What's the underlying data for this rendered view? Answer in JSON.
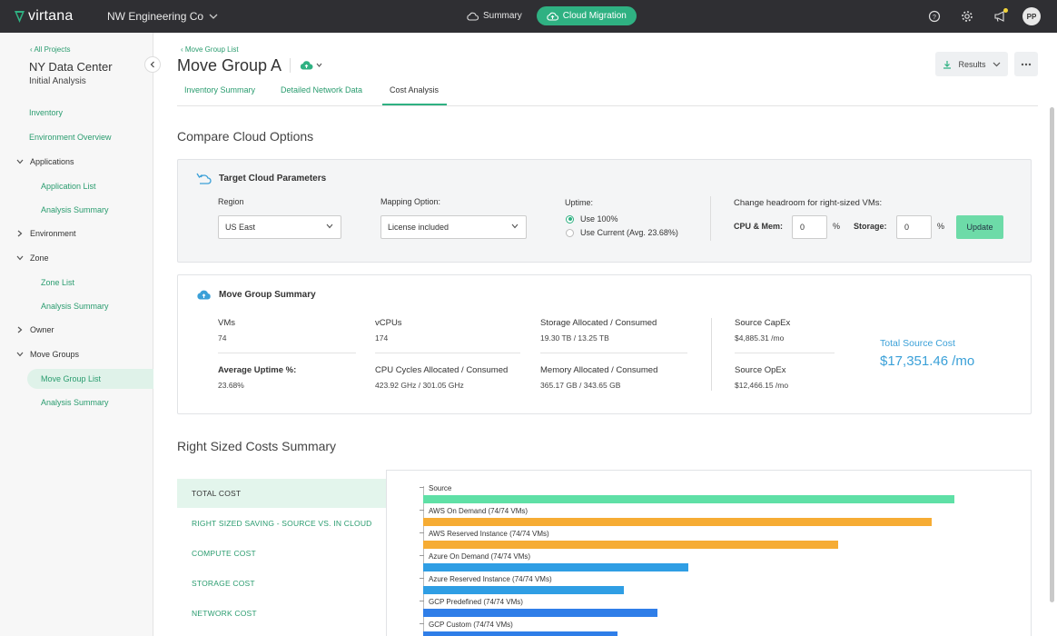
{
  "header": {
    "logo": "virtana",
    "org": "NW Engineering Co",
    "nav": [
      {
        "label": "Summary"
      },
      {
        "label": "Cloud Migration"
      }
    ],
    "avatar": "PP"
  },
  "sidebar": {
    "back": "All Projects",
    "title": "NY Data Center",
    "subtitle": "Initial Analysis",
    "items": [
      {
        "label": "Inventory"
      },
      {
        "label": "Environment Overview"
      },
      {
        "label": "Applications"
      },
      {
        "label": "Application List"
      },
      {
        "label": "Analysis Summary"
      },
      {
        "label": "Environment"
      },
      {
        "label": "Zone"
      },
      {
        "label": "Zone List"
      },
      {
        "label": "Analysis Summary"
      },
      {
        "label": "Owner"
      },
      {
        "label": "Move Groups"
      },
      {
        "label": "Move Group List"
      },
      {
        "label": "Analysis Summary"
      }
    ]
  },
  "page": {
    "breadcrumb": "Move Group List",
    "title": "Move Group A",
    "results_label": "Results",
    "tabs": [
      {
        "label": "Inventory Summary"
      },
      {
        "label": "Detailed Network Data"
      },
      {
        "label": "Cost Analysis"
      }
    ]
  },
  "compare": {
    "title": "Compare Cloud Options",
    "panel_title": "Target Cloud Parameters",
    "region_label": "Region",
    "region_value": "US East",
    "mapping_label": "Mapping Option:",
    "mapping_value": "License included",
    "uptime_label": "Uptime:",
    "uptime_options": [
      "Use 100%",
      "Use Current (Avg. 23.68%)"
    ],
    "headroom_label": "Change headroom for right-sized VMs:",
    "cpu_mem_label": "CPU & Mem:",
    "cpu_mem_value": "0",
    "storage_label": "Storage:",
    "storage_value": "0",
    "percent": "%",
    "update_label": "Update"
  },
  "summary": {
    "title": "Move Group Summary",
    "vms_label": "VMs",
    "vms_value": "74",
    "vcpus_label": "vCPUs",
    "vcpus_value": "174",
    "storage_label": "Storage Allocated / Consumed",
    "storage_value": "19.30 TB  /  13.25 TB",
    "uptime_label": "Average Uptime %:",
    "uptime_value": "23.68%",
    "cpu_label": "CPU Cycles Allocated / Consumed",
    "cpu_value": "423.92 GHz  /  301.05 GHz",
    "memory_label": "Memory Allocated / Consumed",
    "memory_value": "365.17 GB  /  343.65 GB",
    "capex_label": "Source CapEx",
    "capex_value": "$4,885.31  /mo",
    "opex_label": "Source OpEx",
    "opex_value": "$12,466.15  /mo",
    "total_label": "Total Source Cost",
    "total_value": "$17,351.46  /mo"
  },
  "costs": {
    "title": "Right Sized Costs Summary",
    "menu": [
      {
        "label": "TOTAL COST"
      },
      {
        "label": "RIGHT SIZED SAVING - SOURCE VS. IN CLOUD"
      },
      {
        "label": "COMPUTE COST"
      },
      {
        "label": "STORAGE COST"
      },
      {
        "label": "NETWORK COST"
      }
    ]
  },
  "chart_data": {
    "type": "bar",
    "orientation": "horizontal",
    "categories": [
      "Source",
      "AWS On Demand (74/74 VMs)",
      "AWS Reserved Instance (74/74 VMs)",
      "Azure On Demand (74/74 VMs)",
      "Azure Reserved Instance (74/74 VMs)",
      "GCP Predefined (74/74 VMs)",
      "GCP Custom (74/74 VMs)"
    ],
    "values": [
      17351.46,
      16600,
      13550,
      8660,
      6570,
      7650,
      6350
    ],
    "colors": [
      "#5fe0a6",
      "#f6ac34",
      "#f6ac34",
      "#2f9ee4",
      "#2f9ee4",
      "#2f7ee8",
      "#2f7ee8"
    ],
    "xlim": [
      0,
      17800
    ]
  }
}
